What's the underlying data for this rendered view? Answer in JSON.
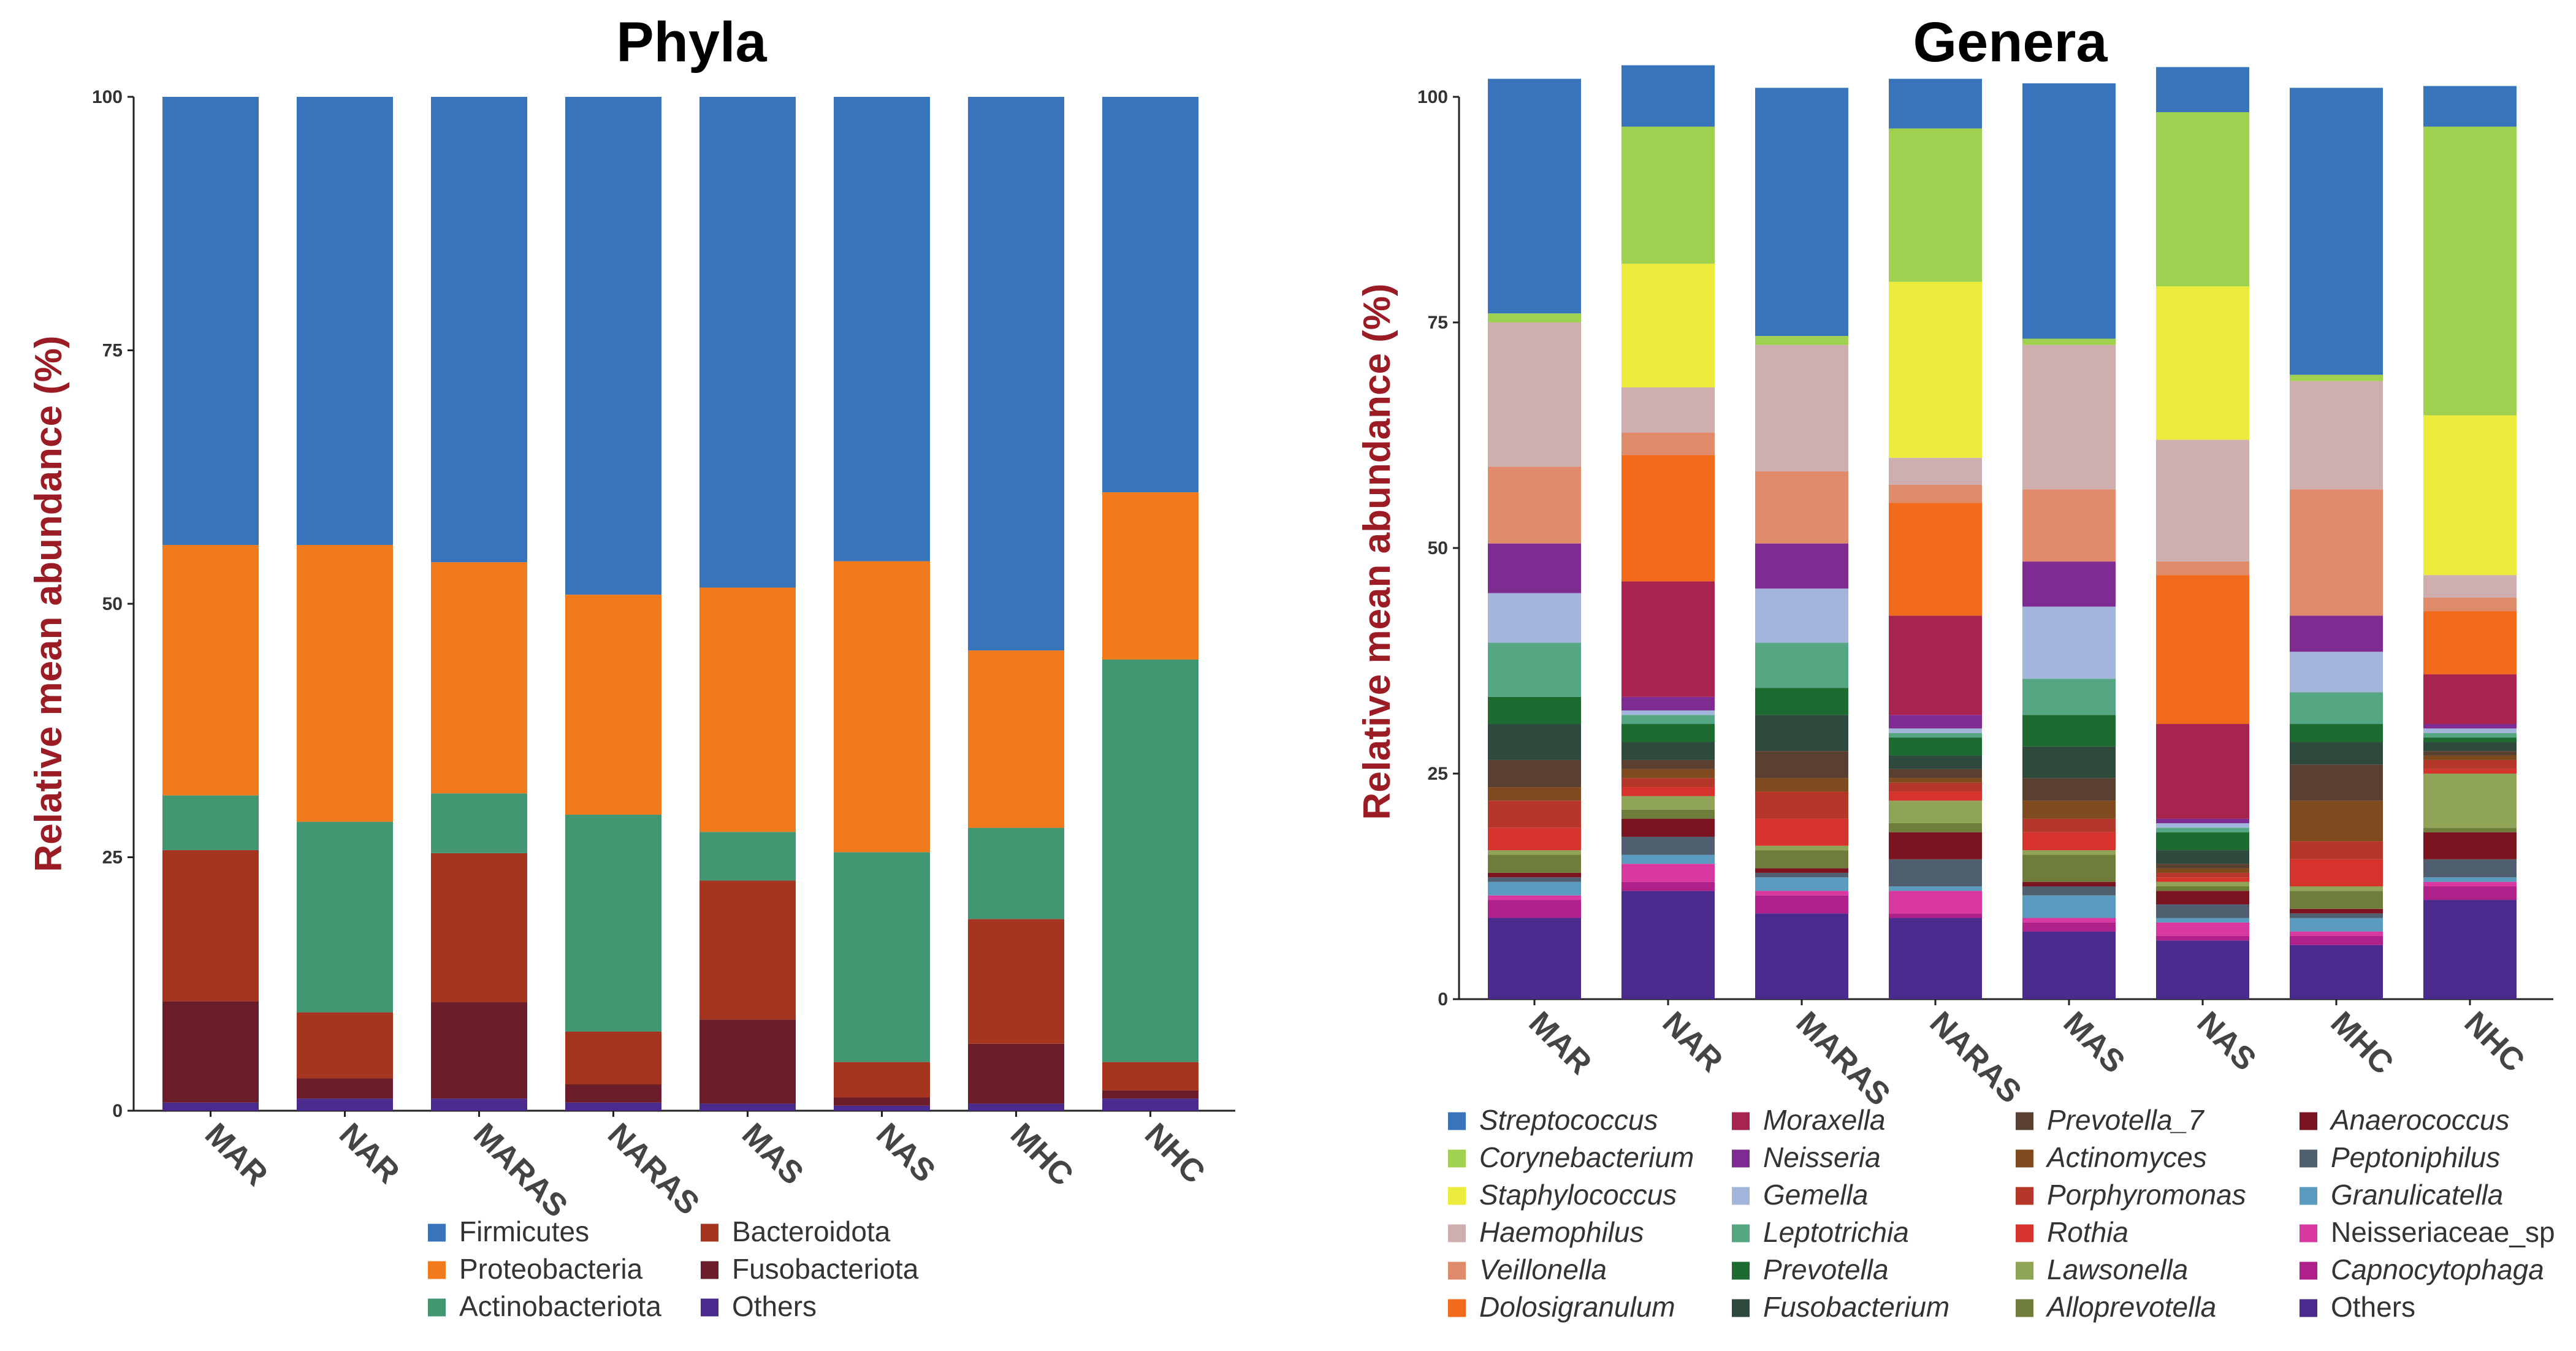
{
  "chart_data": [
    {
      "type": "bar",
      "stacked": true,
      "title": "Phyla",
      "ylabel": "Relative mean abundance (%)",
      "xlabel": "",
      "ylim": [
        0,
        100
      ],
      "yticks": [
        "0",
        "25",
        "50",
        "75",
        "100"
      ],
      "categories": [
        "MAR",
        "NAR",
        "MARAS",
        "NARAS",
        "MAS",
        "NAS",
        "MHC",
        "NHC"
      ],
      "legend_position": "bottom",
      "series": [
        {
          "name": "Others",
          "color": "#4a2a8c",
          "values": [
            0.8,
            1.2,
            1.2,
            0.8,
            0.7,
            0.5,
            0.7,
            1.2
          ]
        },
        {
          "name": "Fusobacteriota",
          "color": "#6b1e2a",
          "values": [
            10.0,
            2.0,
            9.5,
            1.8,
            8.3,
            0.8,
            5.9,
            0.8
          ]
        },
        {
          "name": "Bacteroidota",
          "color": "#a6351f",
          "values": [
            14.9,
            6.5,
            14.7,
            5.2,
            13.7,
            3.5,
            12.3,
            2.8
          ]
        },
        {
          "name": "Actinobacteriota",
          "color": "#429672",
          "values": [
            5.4,
            18.8,
            5.9,
            21.4,
            4.8,
            20.7,
            9.0,
            39.7
          ]
        },
        {
          "name": "Proteobacteria",
          "color": "#f07a1c",
          "values": [
            24.7,
            27.3,
            22.8,
            21.7,
            24.1,
            28.7,
            17.5,
            16.5
          ]
        },
        {
          "name": "Firmicutes",
          "color": "#3874bb",
          "values": [
            44.2,
            44.2,
            45.9,
            49.1,
            48.4,
            45.8,
            54.6,
            39.0
          ]
        }
      ],
      "legend": [
        {
          "name": "Firmicutes",
          "color": "#3874bb"
        },
        {
          "name": "Proteobacteria",
          "color": "#f07a1c"
        },
        {
          "name": "Actinobacteriota",
          "color": "#429672"
        },
        {
          "name": "Bacteroidota",
          "color": "#a6351f"
        },
        {
          "name": "Fusobacteriota",
          "color": "#6b1e2a"
        },
        {
          "name": "Others",
          "color": "#4a2a8c"
        }
      ]
    },
    {
      "type": "bar",
      "stacked": true,
      "title": "Genera",
      "ylabel": "Relative mean abundance (%)",
      "xlabel": "",
      "ylim": [
        0,
        100
      ],
      "yticks": [
        "0",
        "25",
        "50",
        "75",
        "100"
      ],
      "categories": [
        "MAR",
        "NAR",
        "MARAS",
        "NARAS",
        "MAS",
        "NAS",
        "MHC",
        "NHC"
      ],
      "legend_position": "bottom",
      "series": [
        {
          "name": "Others",
          "color": "#4a2a8c",
          "italic": false,
          "values": [
            9.0,
            12.0,
            9.5,
            9.0,
            7.5,
            6.5,
            6.0,
            11.0
          ]
        },
        {
          "name": "Capnocytophaga",
          "color": "#b0208a",
          "italic": true,
          "values": [
            2.0,
            1.0,
            2.0,
            0.5,
            1.0,
            0.5,
            1.0,
            1.5
          ]
        },
        {
          "name": "Neisseriaceae_sp",
          "color": "#d8389f",
          "italic": false,
          "values": [
            0.5,
            2.0,
            0.5,
            2.5,
            0.5,
            1.5,
            0.5,
            0.5
          ]
        },
        {
          "name": "Granulicatella",
          "color": "#5b9bbf",
          "italic": true,
          "values": [
            1.5,
            1.0,
            1.5,
            0.5,
            2.5,
            0.5,
            1.5,
            0.5
          ]
        },
        {
          "name": "Peptoniphilus",
          "color": "#4f5f6f",
          "italic": true,
          "values": [
            0.5,
            2.0,
            0.5,
            3.0,
            1.0,
            1.5,
            0.5,
            2.0
          ]
        },
        {
          "name": "Anaerococcus",
          "color": "#7b1420",
          "italic": true,
          "values": [
            0.5,
            2.0,
            0.5,
            3.0,
            0.5,
            1.5,
            0.5,
            3.0
          ]
        },
        {
          "name": "Alloprevotella",
          "color": "#6f7d3b",
          "italic": true,
          "values": [
            2.0,
            1.0,
            2.0,
            1.0,
            3.0,
            0.5,
            2.0,
            0.5
          ]
        },
        {
          "name": "Lawsonella",
          "color": "#8fa456",
          "italic": true,
          "values": [
            0.5,
            1.5,
            0.5,
            2.5,
            0.5,
            0.5,
            0.5,
            6.0
          ]
        },
        {
          "name": "Rothia",
          "color": "#d5332b",
          "italic": true,
          "values": [
            2.5,
            1.0,
            3.0,
            1.0,
            2.0,
            0.5,
            3.0,
            0.5
          ]
        },
        {
          "name": "Porphyromonas",
          "color": "#b5372a",
          "italic": true,
          "values": [
            3.0,
            1.0,
            3.0,
            1.0,
            1.5,
            0.5,
            2.0,
            1.0
          ]
        },
        {
          "name": "Actinomyces",
          "color": "#7f4a1e",
          "italic": true,
          "values": [
            1.5,
            1.0,
            1.5,
            0.5,
            2.0,
            0.5,
            4.5,
            0.5
          ]
        },
        {
          "name": "Prevotella_7",
          "color": "#5a4030",
          "italic": true,
          "values": [
            3.0,
            1.0,
            3.0,
            1.0,
            2.5,
            0.5,
            4.0,
            0.5
          ]
        },
        {
          "name": "Fusobacterium",
          "color": "#2d4a3c",
          "italic": true,
          "values": [
            4.0,
            2.0,
            4.0,
            1.5,
            3.5,
            1.5,
            2.5,
            1.0
          ]
        },
        {
          "name": "Prevotella",
          "color": "#1e6b32",
          "italic": true,
          "values": [
            3.0,
            2.0,
            3.0,
            2.0,
            3.5,
            2.0,
            2.0,
            0.5
          ]
        },
        {
          "name": "Leptotrichia",
          "color": "#55a682",
          "italic": true,
          "values": [
            6.0,
            1.0,
            5.0,
            0.5,
            4.0,
            0.5,
            3.5,
            0.5
          ]
        },
        {
          "name": "Gemella",
          "color": "#a3b5db",
          "italic": true,
          "values": [
            5.5,
            0.5,
            6.0,
            0.5,
            8.0,
            0.5,
            4.5,
            0.5
          ]
        },
        {
          "name": "Neisseria",
          "color": "#7e2c92",
          "italic": true,
          "values": [
            5.5,
            1.5,
            5.0,
            1.5,
            5.0,
            0.5,
            4.0,
            0.5
          ]
        },
        {
          "name": "Moraxella",
          "color": "#a8244f",
          "italic": true,
          "values": [
            0.0,
            12.8,
            0.0,
            11.0,
            0.0,
            10.5,
            0.0,
            5.5
          ]
        },
        {
          "name": "Dolosigranulum",
          "color": "#f26a1b",
          "italic": true,
          "values": [
            0.0,
            14.0,
            0.0,
            12.5,
            0.0,
            16.5,
            0.0,
            7.0
          ]
        },
        {
          "name": "Veillonella",
          "color": "#e08a6c",
          "italic": true,
          "values": [
            8.5,
            2.5,
            8.0,
            2.0,
            8.0,
            1.5,
            14.0,
            1.5
          ]
        },
        {
          "name": "Haemophilus",
          "color": "#cfaeb0",
          "italic": true,
          "values": [
            16.0,
            5.0,
            14.0,
            3.0,
            16.0,
            13.5,
            12.0,
            2.5
          ]
        },
        {
          "name": "Staphylococcus",
          "color": "#ebeb3b",
          "italic": true,
          "values": [
            0.0,
            13.7,
            0.0,
            19.5,
            0.0,
            17.0,
            0.0,
            17.7
          ]
        },
        {
          "name": "Corynebacterium",
          "color": "#a0d04f",
          "italic": true,
          "values": [
            1.0,
            15.2,
            1.0,
            17.0,
            0.7,
            19.3,
            0.7,
            32.0
          ]
        },
        {
          "name": "Streptococcus",
          "color": "#3874bb",
          "italic": true,
          "values": [
            26.0,
            6.8,
            27.5,
            5.5,
            28.3,
            5.0,
            31.8,
            4.5
          ]
        }
      ],
      "legend": [
        {
          "name": "Streptococcus",
          "color": "#3874bb",
          "italic": true
        },
        {
          "name": "Corynebacterium",
          "color": "#a0d04f",
          "italic": true
        },
        {
          "name": "Staphylococcus",
          "color": "#ebeb3b",
          "italic": true
        },
        {
          "name": "Haemophilus",
          "color": "#cfaeb0",
          "italic": true
        },
        {
          "name": "Veillonella",
          "color": "#e08a6c",
          "italic": true
        },
        {
          "name": "Dolosigranulum",
          "color": "#f26a1b",
          "italic": true
        },
        {
          "name": "Moraxella",
          "color": "#a8244f",
          "italic": true
        },
        {
          "name": "Neisseria",
          "color": "#7e2c92",
          "italic": true
        },
        {
          "name": "Gemella",
          "color": "#a3b5db",
          "italic": true
        },
        {
          "name": "Leptotrichia",
          "color": "#55a682",
          "italic": true
        },
        {
          "name": "Prevotella",
          "color": "#1e6b32",
          "italic": true
        },
        {
          "name": "Fusobacterium",
          "color": "#2d4a3c",
          "italic": true
        },
        {
          "name": "Prevotella_7",
          "color": "#5a4030",
          "italic": true
        },
        {
          "name": "Actinomyces",
          "color": "#7f4a1e",
          "italic": true
        },
        {
          "name": "Porphyromonas",
          "color": "#b5372a",
          "italic": true
        },
        {
          "name": "Rothia",
          "color": "#d5332b",
          "italic": true
        },
        {
          "name": "Lawsonella",
          "color": "#8fa456",
          "italic": true
        },
        {
          "name": "Alloprevotella",
          "color": "#6f7d3b",
          "italic": true
        },
        {
          "name": "Anaerococcus",
          "color": "#7b1420",
          "italic": true
        },
        {
          "name": "Peptoniphilus",
          "color": "#4f5f6f",
          "italic": true
        },
        {
          "name": "Granulicatella",
          "color": "#5b9bbf",
          "italic": true
        },
        {
          "name": "Neisseriaceae_sp",
          "color": "#d8389f",
          "italic": false
        },
        {
          "name": "Capnocytophaga",
          "color": "#b0208a",
          "italic": true
        },
        {
          "name": "Others",
          "color": "#4a2a8c",
          "italic": false
        }
      ]
    }
  ]
}
